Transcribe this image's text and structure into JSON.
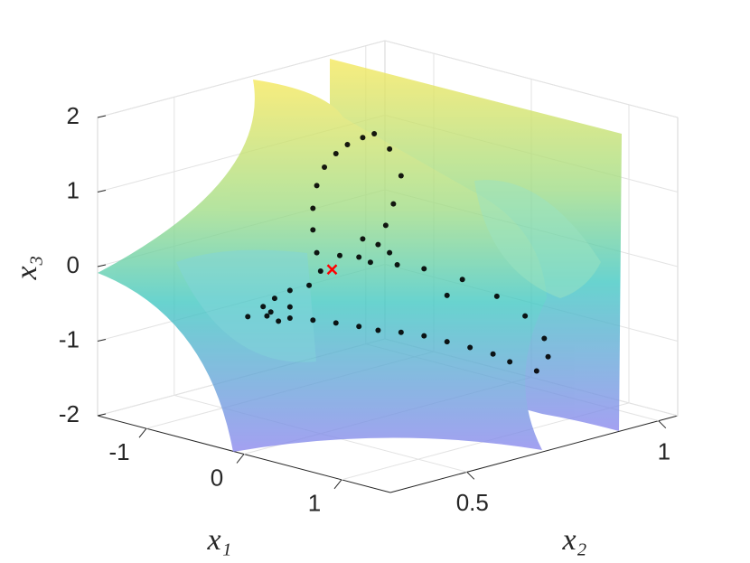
{
  "chart_data": {
    "type": "scatter3d",
    "xlabel": "x₁",
    "ylabel": "x₂",
    "zlabel": "x₃",
    "xlim": [
      -1.5,
      1.5
    ],
    "ylim": [
      0.3,
      1.05
    ],
    "zlim": [
      -2,
      2
    ],
    "xticks": [
      -1,
      0,
      1
    ],
    "yticks": [
      0.5,
      1
    ],
    "zticks": [
      -2,
      -1,
      0,
      1,
      2
    ],
    "grid": true,
    "series": [
      {
        "color": "#000000",
        "marker": "dot",
        "x": [
          0,
          0,
          0,
          0,
          0,
          0,
          0,
          0,
          0,
          0,
          0,
          0,
          0,
          0,
          0,
          0,
          0.8,
          0.8,
          0.8,
          0.8,
          0.8,
          0,
          0,
          0,
          0,
          0,
          0,
          0,
          0,
          0,
          0,
          0,
          0,
          0,
          0,
          0,
          0,
          0,
          0,
          0,
          0,
          0,
          0,
          0,
          0,
          0,
          0,
          0,
          0
        ],
        "y": [
          0.64,
          0.68,
          0.71,
          0.69,
          0.67,
          0.61,
          0.55,
          0.6,
          0.65,
          0.68,
          0.63,
          0.7,
          0.77,
          0.87,
          0.96,
          0.83,
          0.83,
          0.88,
          0.89,
          0.86,
          0.79,
          0.95,
          0.89,
          0.83,
          0.77,
          0.71,
          0.65,
          0.6,
          0.54,
          0.48,
          0.42,
          0.39,
          0.36,
          0.31,
          0.37,
          0.35,
          0.38,
          0.42,
          0.42,
          0.47,
          0.5,
          0.49,
          0.48,
          0.48,
          0.49,
          0.51,
          0.54,
          0.57,
          0.61
        ],
        "z": [
          1.83,
          1.57,
          1.17,
          0.82,
          0.56,
          0.46,
          0.32,
          0.23,
          0.33,
          0.18,
          0.12,
          -0.01,
          -0.16,
          -0.44,
          -0.79,
          -0.6,
          -0.6,
          -0.97,
          -1.23,
          -1.38,
          -1.16,
          -1.55,
          -1.38,
          -1.22,
          -1.06,
          -0.93,
          -0.82,
          -0.7,
          -0.57,
          -0.45,
          -0.34,
          -0.34,
          -0.23,
          -0.17,
          -0.19,
          -0.09,
          -0.02,
          0.03,
          -0.19,
          0.03,
          0.18,
          0.44,
          0.76,
          1.05,
          1.34,
          1.56,
          1.7,
          1.78,
          1.82
        ]
      },
      {
        "color": "#ff0000",
        "marker": "x",
        "x": [
          0
        ],
        "y": [
          0.53
        ],
        "z": [
          0.16
        ]
      }
    ]
  }
}
